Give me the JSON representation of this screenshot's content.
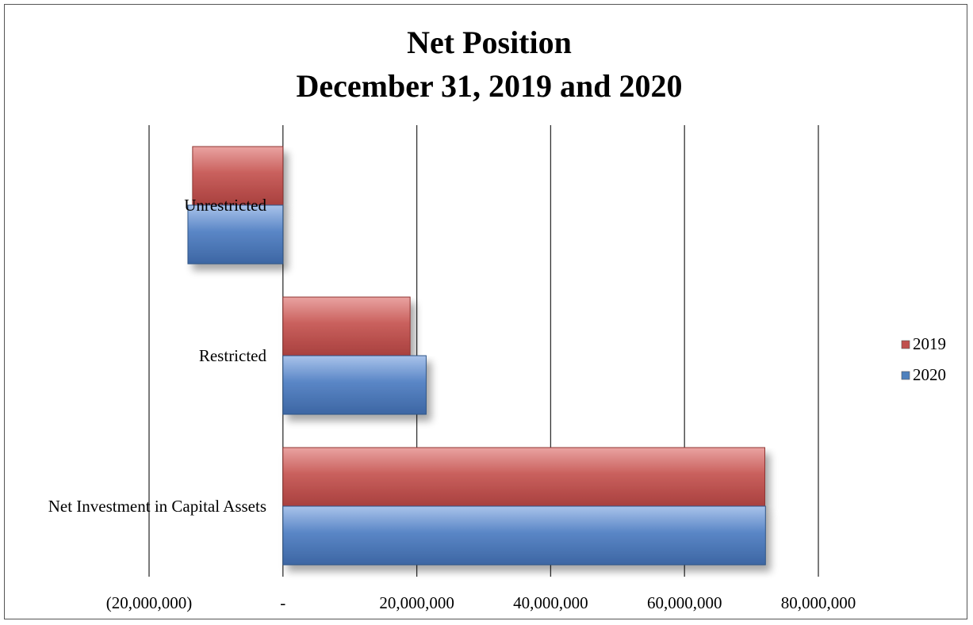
{
  "chart_data": {
    "type": "bar",
    "orientation": "horizontal",
    "title": "Net Position",
    "subtitle": "December 31, 2019 and 2020",
    "categories": [
      "Net Investment in Capital Assets",
      "Restricted",
      "Unrestricted"
    ],
    "series": [
      {
        "name": "2019",
        "values": [
          72000000,
          19000000,
          -13500000
        ],
        "color": "#c0504d"
      },
      {
        "name": "2020",
        "values": [
          72100000,
          21400000,
          -14200000
        ],
        "color": "#4f81bd"
      }
    ],
    "xlim": [
      -20000000,
      80000000
    ],
    "x_ticks": [
      -20000000,
      0,
      20000000,
      40000000,
      60000000,
      80000000
    ],
    "x_tick_labels": [
      "(20,000,000)",
      "-",
      "20,000,000",
      "40,000,000",
      "60,000,000",
      "80,000,000"
    ],
    "grid": "vertical",
    "legend_position": "right"
  }
}
